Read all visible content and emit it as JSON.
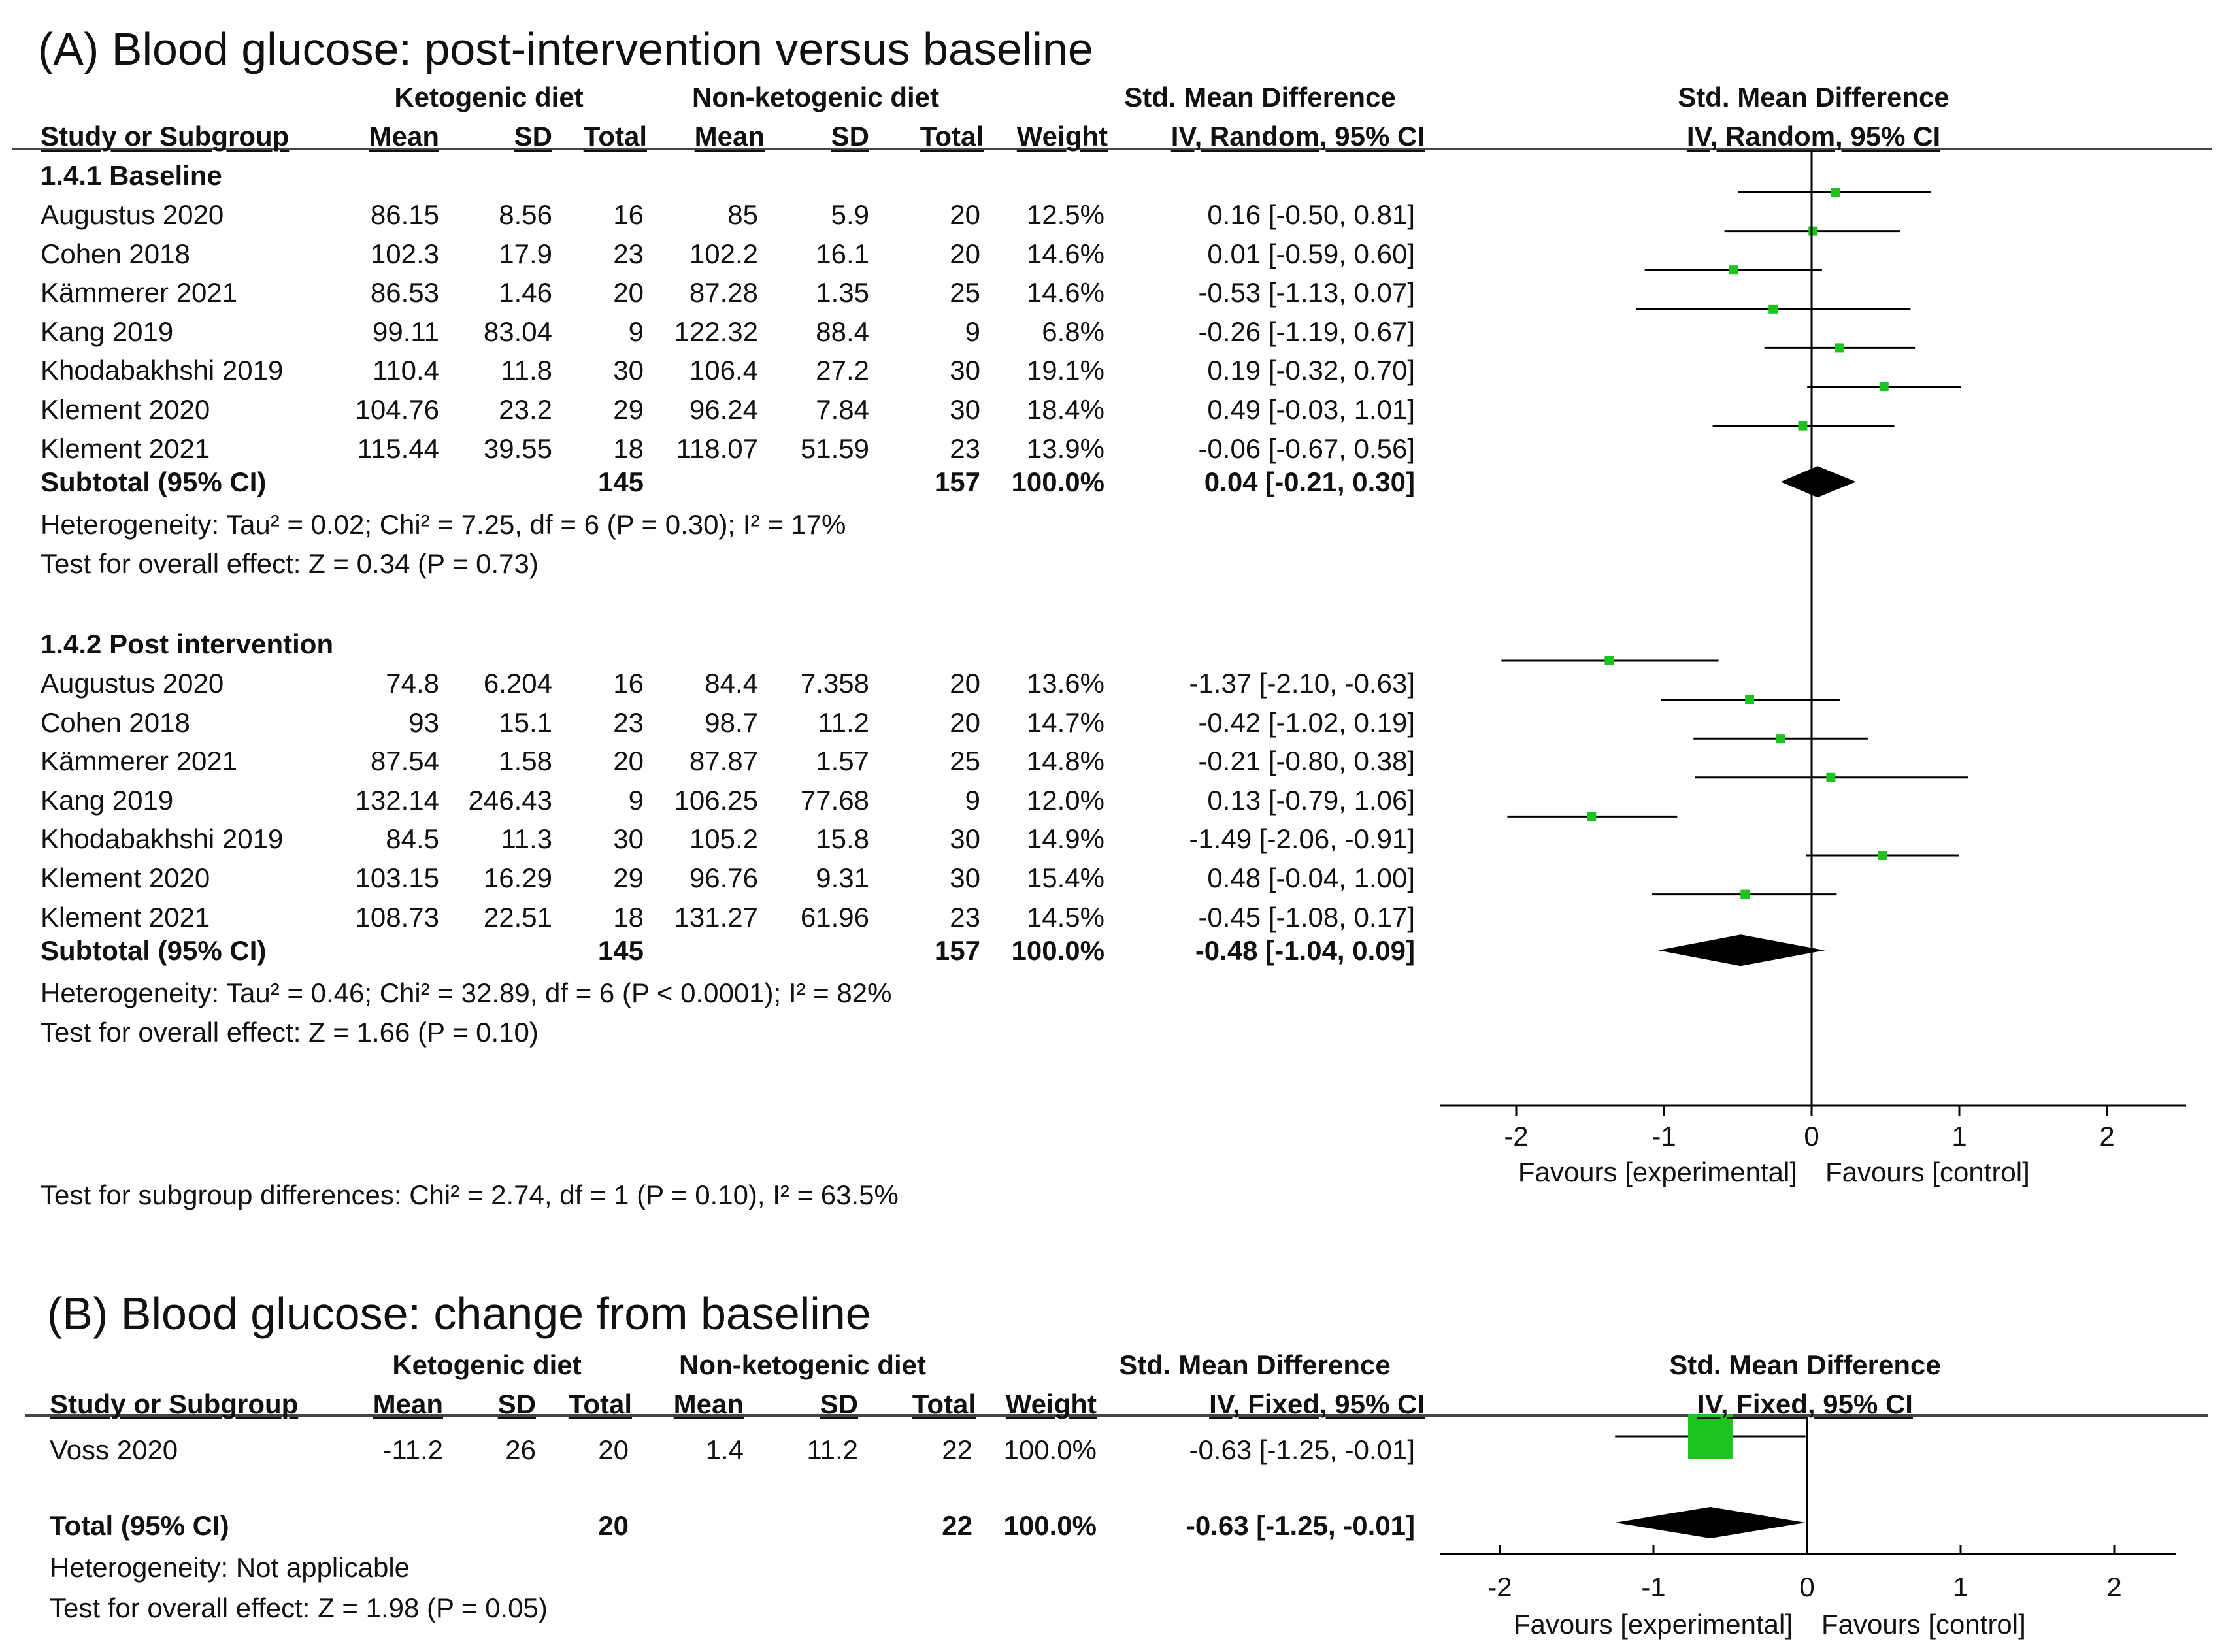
{
  "panel_a": {
    "title": "(A) Blood glucose: post-intervention versus baseline",
    "headers": {
      "ketogenic": "Ketogenic diet",
      "nonketogenic": "Non-ketogenic diet",
      "smd": "Std. Mean Difference",
      "smd_plot": "Std. Mean Difference",
      "study": "Study or Subgroup",
      "mean1": "Mean",
      "sd1": "SD",
      "total1": "Total",
      "mean2": "Mean",
      "sd2": "SD",
      "total2": "Total",
      "weight": "Weight",
      "ci": "IV, Random, 95% CI",
      "ci_plot": "IV, Random, 95% CI"
    },
    "subgroups": [
      {
        "label": "1.4.1 Baseline",
        "studies": [
          {
            "name": "Augustus 2020",
            "m1": "86.15",
            "sd1": "8.56",
            "n1": "16",
            "m2": "85",
            "sd2": "5.9",
            "n2": "20",
            "w": "12.5%",
            "ci": "0.16 [-0.50, 0.81]",
            "est": 0.16,
            "lo": -0.5,
            "hi": 0.81
          },
          {
            "name": "Cohen 2018",
            "m1": "102.3",
            "sd1": "17.9",
            "n1": "23",
            "m2": "102.2",
            "sd2": "16.1",
            "n2": "20",
            "w": "14.6%",
            "ci": "0.01 [-0.59, 0.60]",
            "est": 0.01,
            "lo": -0.59,
            "hi": 0.6
          },
          {
            "name": "Kämmerer 2021",
            "m1": "86.53",
            "sd1": "1.46",
            "n1": "20",
            "m2": "87.28",
            "sd2": "1.35",
            "n2": "25",
            "w": "14.6%",
            "ci": "-0.53 [-1.13, 0.07]",
            "est": -0.53,
            "lo": -1.13,
            "hi": 0.07
          },
          {
            "name": "Kang 2019",
            "m1": "99.11",
            "sd1": "83.04",
            "n1": "9",
            "m2": "122.32",
            "sd2": "88.4",
            "n2": "9",
            "w": "6.8%",
            "ci": "-0.26 [-1.19, 0.67]",
            "est": -0.26,
            "lo": -1.19,
            "hi": 0.67
          },
          {
            "name": "Khodabakhshi 2019",
            "m1": "110.4",
            "sd1": "11.8",
            "n1": "30",
            "m2": "106.4",
            "sd2": "27.2",
            "n2": "30",
            "w": "19.1%",
            "ci": "0.19 [-0.32, 0.70]",
            "est": 0.19,
            "lo": -0.32,
            "hi": 0.7
          },
          {
            "name": "Klement 2020",
            "m1": "104.76",
            "sd1": "23.2",
            "n1": "29",
            "m2": "96.24",
            "sd2": "7.84",
            "n2": "30",
            "w": "18.4%",
            "ci": "0.49 [-0.03, 1.01]",
            "est": 0.49,
            "lo": -0.03,
            "hi": 1.01
          },
          {
            "name": "Klement 2021",
            "m1": "115.44",
            "sd1": "39.55",
            "n1": "18",
            "m2": "118.07",
            "sd2": "51.59",
            "n2": "23",
            "w": "13.9%",
            "ci": "-0.06 [-0.67, 0.56]",
            "est": -0.06,
            "lo": -0.67,
            "hi": 0.56
          }
        ],
        "subtotal": {
          "label": "Subtotal (95% CI)",
          "n1": "145",
          "n2": "157",
          "w": "100.0%",
          "ci": "0.04 [-0.21, 0.30]",
          "est": 0.04,
          "lo": -0.21,
          "hi": 0.3
        },
        "heterogeneity": "Heterogeneity: Tau² = 0.02; Chi² = 7.25, df = 6 (P = 0.30); I² = 17%",
        "overall": "Test for overall effect: Z = 0.34 (P = 0.73)"
      },
      {
        "label": "1.4.2 Post intervention",
        "studies": [
          {
            "name": "Augustus 2020",
            "m1": "74.8",
            "sd1": "6.204",
            "n1": "16",
            "m2": "84.4",
            "sd2": "7.358",
            "n2": "20",
            "w": "13.6%",
            "ci": "-1.37 [-2.10, -0.63]",
            "est": -1.37,
            "lo": -2.1,
            "hi": -0.63
          },
          {
            "name": "Cohen 2018",
            "m1": "93",
            "sd1": "15.1",
            "n1": "23",
            "m2": "98.7",
            "sd2": "11.2",
            "n2": "20",
            "w": "14.7%",
            "ci": "-0.42 [-1.02, 0.19]",
            "est": -0.42,
            "lo": -1.02,
            "hi": 0.19
          },
          {
            "name": "Kämmerer 2021",
            "m1": "87.54",
            "sd1": "1.58",
            "n1": "20",
            "m2": "87.87",
            "sd2": "1.57",
            "n2": "25",
            "w": "14.8%",
            "ci": "-0.21 [-0.80, 0.38]",
            "est": -0.21,
            "lo": -0.8,
            "hi": 0.38
          },
          {
            "name": "Kang 2019",
            "m1": "132.14",
            "sd1": "246.43",
            "n1": "9",
            "m2": "106.25",
            "sd2": "77.68",
            "n2": "9",
            "w": "12.0%",
            "ci": "0.13 [-0.79, 1.06]",
            "est": 0.13,
            "lo": -0.79,
            "hi": 1.06
          },
          {
            "name": "Khodabakhshi 2019",
            "m1": "84.5",
            "sd1": "11.3",
            "n1": "30",
            "m2": "105.2",
            "sd2": "15.8",
            "n2": "30",
            "w": "14.9%",
            "ci": "-1.49 [-2.06, -0.91]",
            "est": -1.49,
            "lo": -2.06,
            "hi": -0.91
          },
          {
            "name": "Klement 2020",
            "m1": "103.15",
            "sd1": "16.29",
            "n1": "29",
            "m2": "96.76",
            "sd2": "9.31",
            "n2": "30",
            "w": "15.4%",
            "ci": "0.48 [-0.04, 1.00]",
            "est": 0.48,
            "lo": -0.04,
            "hi": 1.0
          },
          {
            "name": "Klement 2021",
            "m1": "108.73",
            "sd1": "22.51",
            "n1": "18",
            "m2": "131.27",
            "sd2": "61.96",
            "n2": "23",
            "w": "14.5%",
            "ci": "-0.45 [-1.08, 0.17]",
            "est": -0.45,
            "lo": -1.08,
            "hi": 0.17
          }
        ],
        "subtotal": {
          "label": "Subtotal (95% CI)",
          "n1": "145",
          "n2": "157",
          "w": "100.0%",
          "ci": "-0.48 [-1.04, 0.09]",
          "est": -0.48,
          "lo": -1.04,
          "hi": 0.09
        },
        "heterogeneity": "Heterogeneity: Tau² = 0.46; Chi² = 32.89, df = 6 (P < 0.0001); I² = 82%",
        "overall": "Test for overall effect: Z = 1.66 (P = 0.10)"
      }
    ],
    "subgroup_diff": "Test for subgroup differences: Chi² = 2.74, df = 1 (P = 0.10), I² = 63.5%",
    "axis": {
      "ticks": [
        "-2",
        "-1",
        "0",
        "1",
        "2"
      ],
      "favours_left": "Favours [experimental]",
      "favours_right": "Favours [control]"
    }
  },
  "panel_b": {
    "title": "(B) Blood glucose: change from baseline",
    "headers": {
      "ketogenic": "Ketogenic diet",
      "nonketogenic": "Non-ketogenic diet",
      "smd": "Std. Mean Difference",
      "smd_plot": "Std. Mean Difference",
      "study": "Study or Subgroup",
      "mean1": "Mean",
      "sd1": "SD",
      "total1": "Total",
      "mean2": "Mean",
      "sd2": "SD",
      "total2": "Total",
      "weight": "Weight",
      "ci": "IV, Fixed, 95% CI",
      "ci_plot": "IV, Fixed, 95% CI"
    },
    "studies": [
      {
        "name": "Voss 2020",
        "m1": "-11.2",
        "sd1": "26",
        "n1": "20",
        "m2": "1.4",
        "sd2": "11.2",
        "n2": "22",
        "w": "100.0%",
        "ci": "-0.63 [-1.25, -0.01]",
        "est": -0.63,
        "lo": -1.25,
        "hi": -0.01
      }
    ],
    "total": {
      "label": "Total (95% CI)",
      "n1": "20",
      "n2": "22",
      "w": "100.0%",
      "ci": "-0.63 [-1.25, -0.01]",
      "est": -0.63,
      "lo": -1.25,
      "hi": -0.01
    },
    "heterogeneity": "Heterogeneity: Not applicable",
    "overall": "Test for overall effect: Z = 1.98 (P = 0.05)",
    "axis": {
      "ticks": [
        "-2",
        "-1",
        "0",
        "1",
        "2"
      ],
      "favours_left": "Favours [experimental]",
      "favours_right": "Favours [control]"
    }
  },
  "chart_data": [
    {
      "type": "forest",
      "title": "(A) Blood glucose: post-intervention versus baseline",
      "xlim": [
        -2.5,
        2.5
      ],
      "xticks": [
        -2,
        -1,
        0,
        1,
        2
      ],
      "series": [
        {
          "name": "1.4.1 Baseline",
          "estimates": [
            0.16,
            0.01,
            -0.53,
            -0.26,
            0.19,
            0.49,
            -0.06
          ],
          "pooled": 0.04
        },
        {
          "name": "1.4.2 Post intervention",
          "estimates": [
            -1.37,
            -0.42,
            -0.21,
            0.13,
            -1.49,
            0.48,
            -0.45
          ],
          "pooled": -0.48
        }
      ]
    },
    {
      "type": "forest",
      "title": "(B) Blood glucose: change from baseline",
      "xlim": [
        -2.5,
        2.5
      ],
      "xticks": [
        -2,
        -1,
        0,
        1,
        2
      ],
      "series": [
        {
          "name": "Voss 2020",
          "estimates": [
            -0.63
          ],
          "pooled": -0.63
        }
      ]
    }
  ],
  "colors": {
    "marker": "#1fc31f",
    "line": "#000000"
  }
}
